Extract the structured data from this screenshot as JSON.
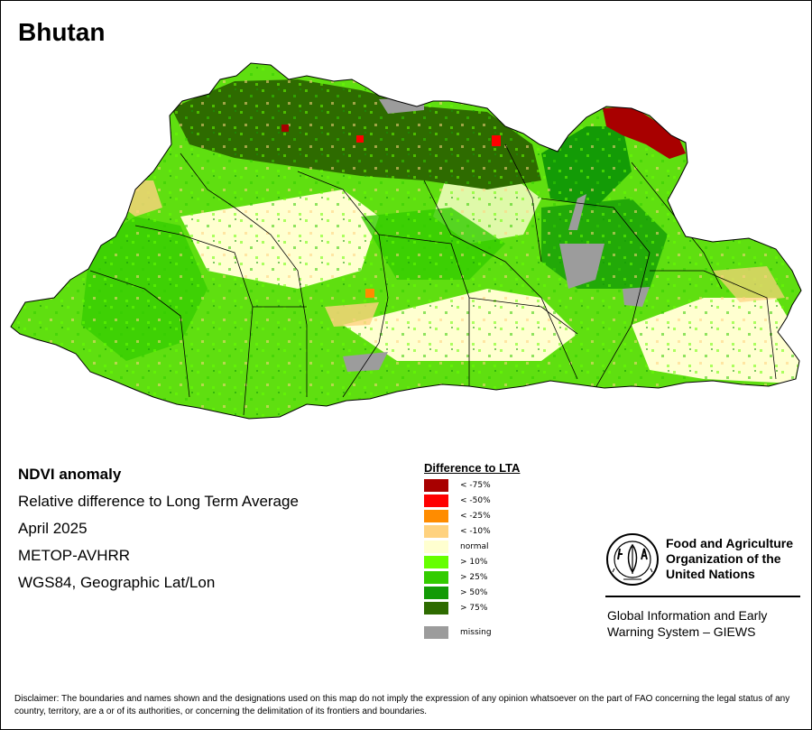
{
  "title": "Bhutan",
  "info": {
    "product": "NDVI anomaly",
    "description": "Relative difference to Long Term Average",
    "period": "April 2025",
    "sensor": "METOP-AVHRR",
    "projection": "WGS84, Geographic Lat/Lon"
  },
  "legend": {
    "title": "Difference to LTA",
    "items": [
      {
        "label": "< -75%",
        "color": "#a80000"
      },
      {
        "label": "< -50%",
        "color": "#ff0000"
      },
      {
        "label": "< -25%",
        "color": "#ff8c00"
      },
      {
        "label": "< -10%",
        "color": "#ffd27f"
      },
      {
        "label": "normal",
        "color": "#ffffd0"
      },
      {
        "label": "> 10%",
        "color": "#66ff00"
      },
      {
        "label": "> 25%",
        "color": "#33cc00"
      },
      {
        "label": "> 50%",
        "color": "#139b06"
      },
      {
        "label": "> 75%",
        "color": "#2e6b00"
      }
    ],
    "missing": {
      "label": "missing",
      "color": "#9c9c9c"
    }
  },
  "org": {
    "name_lines": [
      "Food and Agriculture",
      "Organization of the",
      "United Nations"
    ],
    "system_lines": [
      "Global Information and Early",
      "Warning System – GIEWS"
    ]
  },
  "disclaimer": "Disclaimer: The boundaries and names shown and the designations used on this map do not imply the expression of any opinion whatsoever on the part of FAO concerning the legal status of any country, territory, are a or of its authorities, or concerning the delimitation of its frontiers and boundaries."
}
